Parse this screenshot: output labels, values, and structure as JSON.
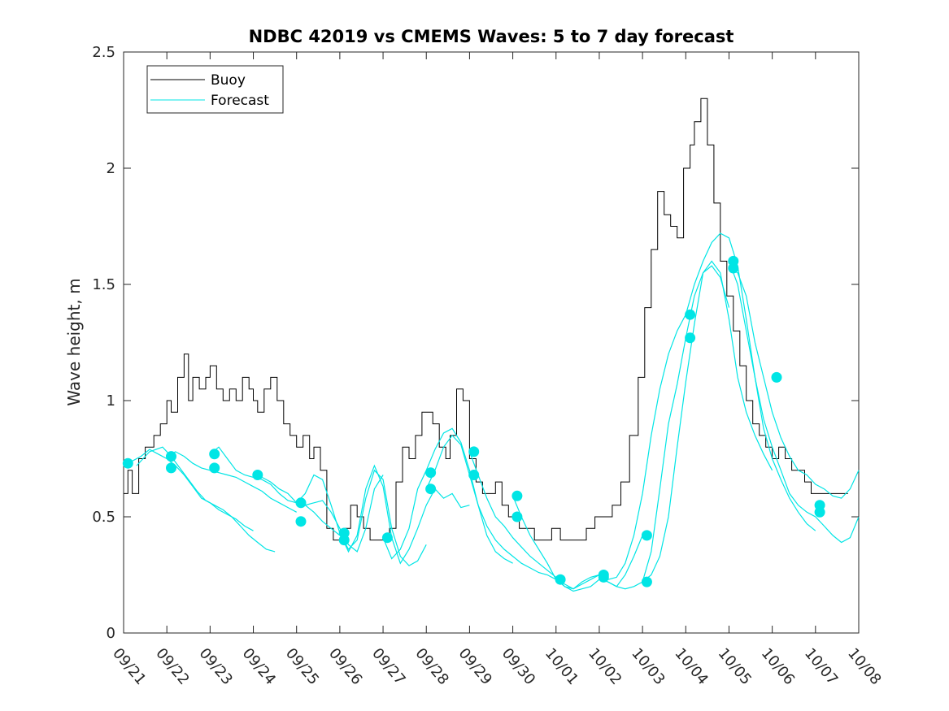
{
  "chart_data": {
    "type": "line",
    "title": "NDBC 42019 vs CMEMS Waves: 5 to 7 day forecast",
    "xlabel": "",
    "ylabel": "Wave height, m",
    "x_tick_labels": [
      "09/21",
      "09/22",
      "09/23",
      "09/24",
      "09/25",
      "09/26",
      "09/27",
      "09/28",
      "09/29",
      "09/30",
      "10/01",
      "10/02",
      "10/03",
      "10/04",
      "10/05",
      "10/06",
      "10/07",
      "10/08"
    ],
    "xlim": [
      0,
      17
    ],
    "ylim": [
      0,
      2.5
    ],
    "y_ticks": [
      0,
      0.5,
      1,
      1.5,
      2,
      2.5
    ],
    "y_tick_labels": [
      "0",
      "0.5",
      "1",
      "1.5",
      "2",
      "2.5"
    ],
    "legend": {
      "position": "top-left",
      "entries": [
        {
          "label": "Buoy",
          "color": "#000000"
        },
        {
          "label": "Forecast",
          "color": "#00e5e5"
        }
      ]
    },
    "colors": {
      "buoy": "#000000",
      "forecast": "#00e5e5",
      "axes": "#262626"
    },
    "buoy": {
      "name": "Buoy",
      "x": [
        0,
        0.1,
        0.2,
        0.35,
        0.5,
        0.7,
        0.85,
        1.0,
        1.1,
        1.25,
        1.4,
        1.5,
        1.6,
        1.75,
        1.9,
        2.0,
        2.15,
        2.3,
        2.45,
        2.6,
        2.75,
        2.9,
        3.0,
        3.1,
        3.25,
        3.4,
        3.55,
        3.7,
        3.85,
        4.0,
        4.15,
        4.3,
        4.4,
        4.55,
        4.7,
        4.85,
        5.0,
        5.1,
        5.25,
        5.4,
        5.55,
        5.7,
        5.85,
        6.0,
        6.15,
        6.3,
        6.45,
        6.6,
        6.75,
        6.9,
        7.0,
        7.15,
        7.3,
        7.45,
        7.55,
        7.7,
        7.85,
        8.0,
        8.15,
        8.3,
        8.45,
        8.6,
        8.75,
        8.9,
        9.0,
        9.15,
        9.3,
        9.5,
        9.7,
        9.9,
        10.1,
        10.3,
        10.5,
        10.7,
        10.9,
        11.1,
        11.3,
        11.5,
        11.7,
        11.9,
        12.05,
        12.2,
        12.35,
        12.5,
        12.65,
        12.8,
        12.95,
        13.1,
        13.2,
        13.35,
        13.5,
        13.65,
        13.8,
        13.95,
        14.1,
        14.25,
        14.4,
        14.55,
        14.7,
        14.85,
        15.0,
        15.15,
        15.3,
        15.45,
        15.6,
        15.75,
        15.9,
        16.05,
        16.2,
        16.35,
        16.5,
        16.65,
        16.75
      ],
      "values": [
        0.6,
        0.7,
        0.6,
        0.75,
        0.8,
        0.85,
        0.9,
        1.0,
        0.95,
        1.1,
        1.2,
        1.0,
        1.1,
        1.05,
        1.1,
        1.15,
        1.05,
        1.0,
        1.05,
        1.0,
        1.1,
        1.05,
        1.0,
        0.95,
        1.05,
        1.1,
        1.0,
        0.9,
        0.85,
        0.8,
        0.85,
        0.75,
        0.8,
        0.7,
        0.45,
        0.4,
        0.4,
        0.45,
        0.55,
        0.5,
        0.45,
        0.4,
        0.4,
        0.4,
        0.45,
        0.65,
        0.8,
        0.75,
        0.85,
        0.95,
        0.95,
        0.9,
        0.8,
        0.75,
        0.85,
        1.05,
        1.0,
        0.75,
        0.65,
        0.6,
        0.6,
        0.65,
        0.55,
        0.5,
        0.5,
        0.45,
        0.45,
        0.4,
        0.4,
        0.45,
        0.4,
        0.4,
        0.4,
        0.45,
        0.5,
        0.5,
        0.55,
        0.65,
        0.85,
        1.1,
        1.4,
        1.65,
        1.9,
        1.8,
        1.75,
        1.7,
        2.0,
        2.1,
        2.2,
        2.3,
        2.1,
        1.85,
        1.6,
        1.45,
        1.3,
        1.15,
        1.0,
        0.9,
        0.85,
        0.8,
        0.75,
        0.8,
        0.75,
        0.7,
        0.7,
        0.65,
        0.6,
        0.6,
        0.6,
        0.6,
        0.6,
        0.6,
        0.6
      ]
    },
    "forecast": {
      "name": "Forecast",
      "series": [
        {
          "x": [
            0.0,
            0.2,
            0.4,
            0.6,
            0.8,
            1.0,
            1.2,
            1.4,
            1.6,
            1.8,
            2.0,
            2.2,
            2.4,
            2.6,
            2.8,
            3.0
          ],
          "values": [
            0.73,
            0.74,
            0.76,
            0.79,
            0.77,
            0.75,
            0.72,
            0.68,
            0.63,
            0.58,
            0.56,
            0.53,
            0.51,
            0.49,
            0.46,
            0.44
          ]
        },
        {
          "x": [
            0.3,
            0.6,
            0.9,
            1.1,
            1.3,
            1.5,
            1.7,
            1.9,
            2.1,
            2.3,
            2.5,
            2.7,
            2.9,
            3.1,
            3.3,
            3.5
          ],
          "values": [
            0.72,
            0.78,
            0.8,
            0.76,
            0.71,
            0.66,
            0.61,
            0.57,
            0.55,
            0.53,
            0.5,
            0.46,
            0.42,
            0.39,
            0.36,
            0.35
          ]
        },
        {
          "x": [
            1.0,
            1.2,
            1.4,
            1.6,
            1.8,
            2.0,
            2.2,
            2.4,
            2.6,
            2.8,
            3.0,
            3.2,
            3.4,
            3.6,
            3.8,
            4.0
          ],
          "values": [
            0.76,
            0.78,
            0.76,
            0.73,
            0.71,
            0.7,
            0.69,
            0.68,
            0.67,
            0.65,
            0.63,
            0.61,
            0.58,
            0.56,
            0.54,
            0.52
          ]
        },
        {
          "x": [
            2.0,
            2.2,
            2.4,
            2.6,
            2.8,
            3.0,
            3.2,
            3.4,
            3.6,
            3.8,
            4.0,
            4.2,
            4.4,
            4.6,
            4.8,
            5.0
          ],
          "values": [
            0.77,
            0.8,
            0.75,
            0.7,
            0.68,
            0.67,
            0.66,
            0.64,
            0.6,
            0.57,
            0.56,
            0.55,
            0.52,
            0.48,
            0.45,
            0.42
          ]
        },
        {
          "x": [
            3.0,
            3.2,
            3.4,
            3.6,
            3.8,
            4.0,
            4.2,
            4.4,
            4.6,
            4.8,
            5.0,
            5.2,
            5.4,
            5.6,
            5.8,
            6.0
          ],
          "values": [
            0.68,
            0.67,
            0.65,
            0.62,
            0.6,
            0.56,
            0.55,
            0.56,
            0.57,
            0.52,
            0.45,
            0.38,
            0.35,
            0.45,
            0.62,
            0.68
          ]
        },
        {
          "x": [
            4.0,
            4.2,
            4.4,
            4.6,
            4.8,
            5.0,
            5.2,
            5.4,
            5.6,
            5.8,
            6.0,
            6.2,
            6.4,
            6.6,
            6.8,
            7.0
          ],
          "values": [
            0.56,
            0.6,
            0.68,
            0.66,
            0.55,
            0.43,
            0.36,
            0.4,
            0.58,
            0.7,
            0.66,
            0.45,
            0.33,
            0.29,
            0.31,
            0.38
          ]
        },
        {
          "x": [
            5.0,
            5.2,
            5.4,
            5.6,
            5.8,
            6.0,
            6.2,
            6.4,
            6.6,
            6.8,
            7.0,
            7.2,
            7.4,
            7.6,
            7.8,
            8.0
          ],
          "values": [
            0.43,
            0.35,
            0.42,
            0.62,
            0.72,
            0.63,
            0.41,
            0.3,
            0.36,
            0.45,
            0.55,
            0.62,
            0.58,
            0.6,
            0.54,
            0.55
          ]
        },
        {
          "x": [
            6.0,
            6.2,
            6.4,
            6.6,
            6.8,
            7.0,
            7.2,
            7.4,
            7.6,
            7.8,
            8.0,
            8.2,
            8.4,
            8.6,
            8.8,
            9.0
          ],
          "values": [
            0.41,
            0.32,
            0.36,
            0.45,
            0.62,
            0.7,
            0.79,
            0.86,
            0.88,
            0.82,
            0.7,
            0.55,
            0.42,
            0.35,
            0.32,
            0.3
          ]
        },
        {
          "x": [
            7.0,
            7.2,
            7.4,
            7.6,
            7.8,
            8.0,
            8.2,
            8.4,
            8.6,
            8.8,
            9.0,
            9.2,
            9.4,
            9.6,
            9.8,
            10.0
          ],
          "values": [
            0.62,
            0.7,
            0.8,
            0.85,
            0.81,
            0.68,
            0.55,
            0.46,
            0.4,
            0.36,
            0.33,
            0.3,
            0.28,
            0.26,
            0.25,
            0.23
          ]
        },
        {
          "x": [
            8.0,
            8.2,
            8.4,
            8.6,
            8.8,
            9.0,
            9.2,
            9.4,
            9.6,
            9.8,
            10.0,
            10.2,
            10.4,
            10.6,
            10.8,
            11.0
          ],
          "values": [
            0.78,
            0.68,
            0.58,
            0.5,
            0.46,
            0.41,
            0.37,
            0.33,
            0.3,
            0.27,
            0.24,
            0.2,
            0.19,
            0.22,
            0.24,
            0.25
          ]
        },
        {
          "x": [
            9.0,
            9.2,
            9.4,
            9.6,
            9.8,
            10.0,
            10.2,
            10.4,
            10.6,
            10.8,
            11.0,
            11.2,
            11.4,
            11.6,
            11.8,
            12.0
          ],
          "values": [
            0.59,
            0.5,
            0.42,
            0.36,
            0.3,
            0.23,
            0.2,
            0.18,
            0.19,
            0.2,
            0.23,
            0.22,
            0.2,
            0.25,
            0.33,
            0.42
          ]
        },
        {
          "x": [
            10.0,
            10.2,
            10.4,
            10.6,
            10.8,
            11.0,
            11.2,
            11.4,
            11.6,
            11.8,
            12.0,
            12.2,
            12.4,
            12.6,
            12.8,
            13.0
          ],
          "values": [
            0.23,
            0.21,
            0.19,
            0.21,
            0.23,
            0.25,
            0.23,
            0.24,
            0.3,
            0.42,
            0.6,
            0.85,
            1.05,
            1.2,
            1.3,
            1.37
          ]
        },
        {
          "x": [
            11.0,
            11.2,
            11.4,
            11.6,
            11.8,
            12.0,
            12.2,
            12.4,
            12.6,
            12.8,
            13.0,
            13.2,
            13.4,
            13.6,
            13.8,
            14.0
          ],
          "values": [
            0.24,
            0.22,
            0.2,
            0.19,
            0.2,
            0.22,
            0.35,
            0.62,
            0.9,
            1.07,
            1.27,
            1.45,
            1.55,
            1.58,
            1.53,
            1.4
          ]
        },
        {
          "x": [
            12.0,
            12.2,
            12.4,
            12.6,
            12.8,
            13.0,
            13.2,
            13.4,
            13.6,
            13.8,
            14.0,
            14.2,
            14.4,
            14.6,
            14.8,
            15.0
          ],
          "values": [
            0.22,
            0.25,
            0.33,
            0.5,
            0.8,
            1.08,
            1.33,
            1.55,
            1.6,
            1.55,
            1.35,
            1.1,
            0.95,
            0.85,
            0.77,
            0.7
          ]
        },
        {
          "x": [
            13.0,
            13.2,
            13.4,
            13.6,
            13.8,
            14.0,
            14.2,
            14.4,
            14.6,
            14.8,
            15.0,
            15.2,
            15.4,
            15.6,
            15.8,
            16.0
          ],
          "values": [
            1.37,
            1.5,
            1.6,
            1.68,
            1.72,
            1.7,
            1.58,
            1.35,
            1.1,
            0.88,
            0.75,
            0.66,
            0.58,
            0.52,
            0.47,
            0.44
          ]
        },
        {
          "x": [
            14.0,
            14.2,
            14.4,
            14.6,
            14.8,
            15.0,
            15.2,
            15.4,
            15.6,
            15.8,
            16.0,
            16.2,
            16.4,
            16.6,
            16.8,
            17.0
          ],
          "values": [
            1.6,
            1.5,
            1.3,
            1.1,
            0.92,
            0.8,
            0.7,
            0.6,
            0.55,
            0.52,
            0.5,
            0.46,
            0.42,
            0.39,
            0.41,
            0.5
          ]
        },
        {
          "x": [
            14.0,
            14.2,
            14.4,
            14.6,
            14.8,
            15.0,
            15.2,
            15.4,
            15.6,
            15.8,
            16.0,
            16.2,
            16.4,
            16.6,
            16.8,
            17.0
          ],
          "values": [
            1.57,
            1.55,
            1.45,
            1.25,
            1.1,
            0.95,
            0.84,
            0.76,
            0.7,
            0.68,
            0.64,
            0.62,
            0.59,
            0.58,
            0.62,
            0.7
          ]
        }
      ],
      "markers": {
        "x": [
          0.1,
          1.1,
          1.1,
          2.1,
          2.1,
          3.1,
          4.1,
          4.1,
          5.1,
          5.1,
          6.1,
          7.1,
          7.1,
          8.1,
          8.1,
          9.1,
          9.1,
          10.1,
          11.1,
          11.1,
          12.1,
          12.1,
          13.1,
          13.1,
          14.1,
          14.1,
          15.1,
          16.1,
          16.1
        ],
        "values": [
          0.73,
          0.76,
          0.71,
          0.77,
          0.71,
          0.68,
          0.56,
          0.48,
          0.43,
          0.4,
          0.41,
          0.69,
          0.62,
          0.78,
          0.68,
          0.59,
          0.5,
          0.23,
          0.25,
          0.24,
          0.42,
          0.22,
          1.37,
          1.27,
          1.6,
          1.57,
          1.1,
          0.55,
          0.52
        ]
      }
    }
  }
}
